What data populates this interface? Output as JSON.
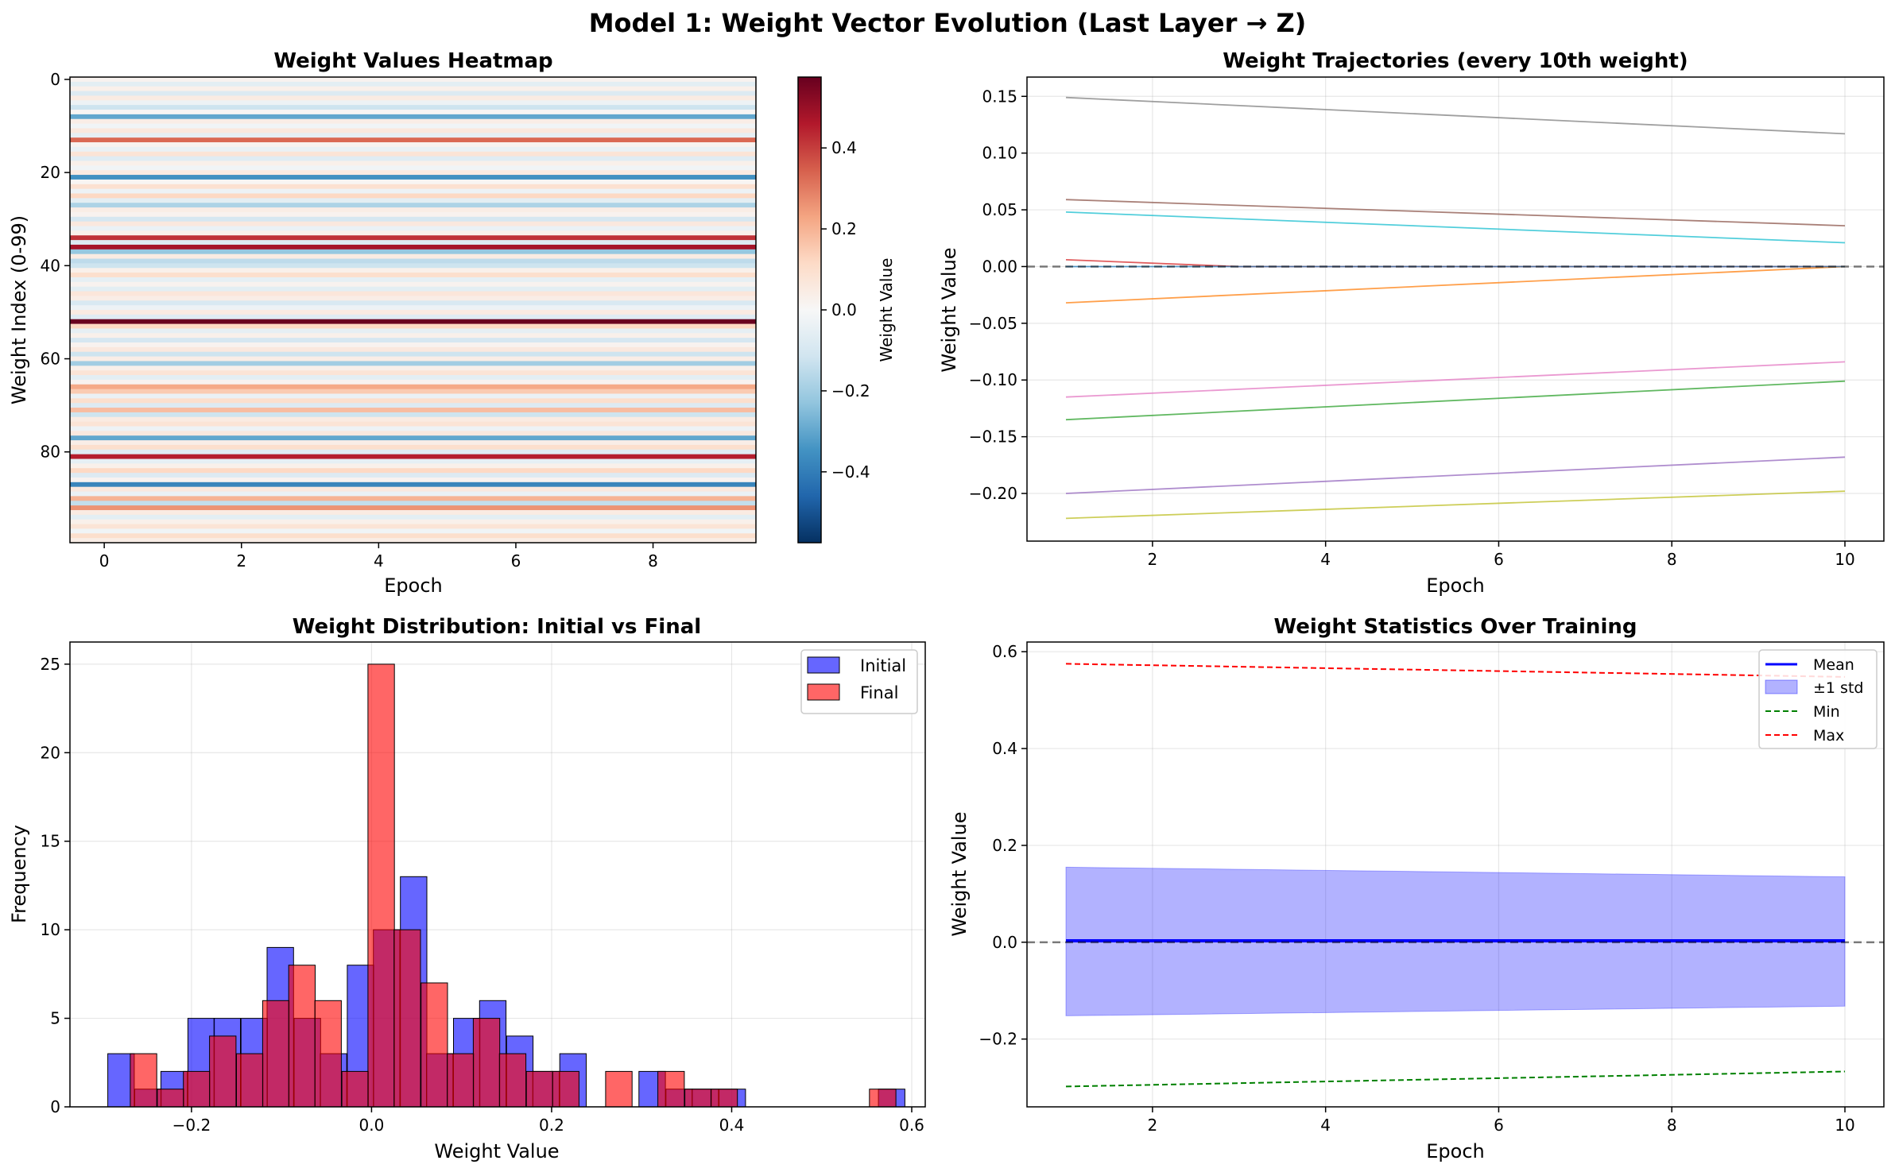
{
  "figure": {
    "suptitle": "Model 1: Weight Vector Evolution (Last Layer → Z)"
  },
  "chart_data": [
    {
      "type": "heatmap",
      "title": "Weight Values Heatmap",
      "xlabel": "Epoch",
      "ylabel": "Weight Index (0-99)",
      "colorbar_label": "Weight Value",
      "colormap": "RdBu_r",
      "vmin": -0.575,
      "vmax": 0.575,
      "xlim": [
        -0.5,
        9.5
      ],
      "ylim": [
        99.5,
        -0.5
      ],
      "xticks": [
        0,
        2,
        4,
        6,
        8
      ],
      "yticks": [
        0,
        20,
        40,
        60,
        80
      ],
      "colorbar_ticks": [
        -0.4,
        -0.2,
        0.0,
        0.2,
        0.4
      ],
      "rows": 100,
      "cols": 10,
      "row_values": [
        0.02,
        -0.06,
        0.03,
        -0.08,
        0.05,
        -0.03,
        -0.12,
        0.01,
        -0.3,
        0.04,
        -0.02,
        0.06,
        -0.05,
        0.33,
        0.02,
        -0.04,
        0.08,
        -0.07,
        0.03,
        -0.02,
        0.05,
        -0.35,
        0.01,
        0.09,
        -0.03,
        0.12,
        -0.06,
        -0.18,
        0.04,
        0.02,
        -0.1,
        0.06,
        -0.04,
        0.03,
        0.42,
        -0.08,
        0.48,
        -0.22,
        0.05,
        -0.15,
        -0.12,
        0.03,
        0.1,
        -0.05,
        0.02,
        -0.06,
        0.07,
        0.04,
        -0.09,
        -0.03,
        0.05,
        -0.07,
        0.57,
        0.12,
        -0.05,
        0.03,
        -0.1,
        0.02,
        0.06,
        -0.12,
        0.04,
        -0.2,
        0.03,
        0.08,
        -0.06,
        0.02,
        0.22,
        0.15,
        -0.04,
        0.1,
        -0.08,
        0.18,
        -0.12,
        0.05,
        0.08,
        -0.03,
        0.06,
        -0.3,
        0.04,
        0.1,
        -0.07,
        0.45,
        -0.05,
        0.03,
        0.12,
        -0.08,
        0.02,
        -0.38,
        0.06,
        -0.04,
        0.2,
        -0.14,
        0.26,
        0.05,
        -0.06,
        0.03,
        0.08,
        -0.02,
        0.1,
        0.04
      ]
    },
    {
      "type": "line",
      "title": "Weight Trajectories (every 10th weight)",
      "xlabel": "Epoch",
      "ylabel": "Weight Value",
      "xlim": [
        0.55,
        10.45
      ],
      "ylim": [
        -0.242,
        0.167
      ],
      "xticks": [
        2,
        4,
        6,
        8,
        10
      ],
      "yticks": [
        -0.2,
        -0.15,
        -0.1,
        -0.05,
        0.0,
        0.05,
        0.1,
        0.15
      ],
      "reference_line": 0.0,
      "series": [
        {
          "color": "#7f7f7f",
          "x": [
            1,
            10
          ],
          "y": [
            0.149,
            0.117
          ]
        },
        {
          "color": "#8c564b",
          "x": [
            1,
            10
          ],
          "y": [
            0.059,
            0.036
          ]
        },
        {
          "color": "#17becf",
          "x": [
            1,
            10
          ],
          "y": [
            0.048,
            0.021
          ]
        },
        {
          "color": "#d62728",
          "x": [
            1,
            3,
            10
          ],
          "y": [
            0.006,
            0.0,
            0.0
          ]
        },
        {
          "color": "#ff7f0e",
          "x": [
            1,
            10
          ],
          "y": [
            -0.032,
            0.0
          ]
        },
        {
          "color": "#e377c2",
          "x": [
            1,
            10
          ],
          "y": [
            -0.115,
            -0.084
          ]
        },
        {
          "color": "#2ca02c",
          "x": [
            1,
            10
          ],
          "y": [
            -0.135,
            -0.101
          ]
        },
        {
          "color": "#9467bd",
          "x": [
            1,
            10
          ],
          "y": [
            -0.2,
            -0.168
          ]
        },
        {
          "color": "#bcbd22",
          "x": [
            1,
            10
          ],
          "y": [
            -0.222,
            -0.198
          ]
        },
        {
          "color": "#1f77b4",
          "x": [
            1,
            10
          ],
          "y": [
            0.0,
            0.0
          ]
        }
      ]
    },
    {
      "type": "bar",
      "title": "Weight Distribution: Initial vs Final",
      "xlabel": "Weight Value",
      "ylabel": "Frequency",
      "xlim": [
        -0.335,
        0.615
      ],
      "ylim": [
        0,
        26.25
      ],
      "xticks": [
        -0.2,
        0.0,
        0.2,
        0.4,
        0.6
      ],
      "yticks": [
        0,
        5,
        10,
        15,
        20,
        25
      ],
      "legend_position": "top-right",
      "series": [
        {
          "name": "Initial",
          "color": "#0000ff",
          "bins": [
            [
              -0.293,
              3
            ],
            [
              -0.263,
              1
            ],
            [
              -0.234,
              2
            ],
            [
              -0.204,
              5
            ],
            [
              -0.175,
              5
            ],
            [
              -0.145,
              5
            ],
            [
              -0.116,
              9
            ],
            [
              -0.086,
              5
            ],
            [
              -0.057,
              3
            ],
            [
              -0.027,
              8
            ],
            [
              0.002,
              10
            ],
            [
              0.032,
              13
            ],
            [
              0.061,
              3
            ],
            [
              0.091,
              5
            ],
            [
              0.12,
              6
            ],
            [
              0.15,
              4
            ],
            [
              0.179,
              2
            ],
            [
              0.209,
              3
            ],
            [
              0.238,
              0
            ],
            [
              0.268,
              0
            ],
            [
              0.297,
              2
            ],
            [
              0.327,
              1
            ],
            [
              0.356,
              1
            ],
            [
              0.386,
              1
            ],
            [
              0.415,
              0
            ],
            [
              0.445,
              0
            ],
            [
              0.474,
              0
            ],
            [
              0.504,
              0
            ],
            [
              0.533,
              0
            ],
            [
              0.563,
              1
            ]
          ]
        },
        {
          "name": "Final",
          "color": "#ff0000",
          "bins": [
            [
              -0.268,
              3
            ],
            [
              -0.238,
              1
            ],
            [
              -0.209,
              2
            ],
            [
              -0.18,
              4
            ],
            [
              -0.15,
              3
            ],
            [
              -0.121,
              6
            ],
            [
              -0.092,
              8
            ],
            [
              -0.063,
              6
            ],
            [
              -0.033,
              2
            ],
            [
              -0.004,
              25
            ],
            [
              0.025,
              10
            ],
            [
              0.055,
              7
            ],
            [
              0.084,
              3
            ],
            [
              0.113,
              5
            ],
            [
              0.142,
              3
            ],
            [
              0.172,
              2
            ],
            [
              0.201,
              2
            ],
            [
              0.23,
              0
            ],
            [
              0.26,
              2
            ],
            [
              0.289,
              0
            ],
            [
              0.318,
              2
            ],
            [
              0.348,
              1
            ],
            [
              0.377,
              1
            ],
            [
              0.406,
              0
            ],
            [
              0.435,
              0
            ],
            [
              0.465,
              0
            ],
            [
              0.494,
              0
            ],
            [
              0.523,
              0
            ],
            [
              0.553,
              1
            ],
            [
              0.582,
              0
            ]
          ]
        }
      ],
      "bin_width": 0.0294
    },
    {
      "type": "line",
      "title": "Weight Statistics Over Training",
      "xlabel": "Epoch",
      "ylabel": "Weight Value",
      "xlim": [
        0.55,
        10.45
      ],
      "ylim": [
        -0.34,
        0.62
      ],
      "xticks": [
        2,
        4,
        6,
        8,
        10
      ],
      "yticks": [
        -0.2,
        0.0,
        0.2,
        0.4,
        0.6
      ],
      "reference_line": 0.0,
      "legend_position": "top-right",
      "series": [
        {
          "name": "Mean",
          "color": "#0000ff",
          "style": "solid",
          "x": [
            1,
            10
          ],
          "y": [
            0.003,
            0.003
          ]
        },
        {
          "name": "±1 std",
          "color": "#0000ff",
          "style": "band",
          "x": [
            1,
            10
          ],
          "upper": [
            0.155,
            0.135
          ],
          "lower": [
            -0.152,
            -0.132
          ]
        },
        {
          "name": "Min",
          "color": "#008000",
          "style": "dashed",
          "x": [
            1,
            10
          ],
          "y": [
            -0.298,
            -0.267
          ]
        },
        {
          "name": "Max",
          "color": "#ff0000",
          "style": "dashed",
          "x": [
            1,
            10
          ],
          "y": [
            0.575,
            0.548
          ]
        }
      ]
    }
  ],
  "tick_labels": {
    "hm_x": [
      "0",
      "2",
      "4",
      "6",
      "8"
    ],
    "hm_y": [
      "0",
      "20",
      "40",
      "60",
      "80"
    ],
    "cb": [
      "−0.4",
      "−0.2",
      "0.0",
      "0.2",
      "0.4"
    ],
    "tr_x": [
      "2",
      "4",
      "6",
      "8",
      "10"
    ],
    "tr_y": [
      "−0.20",
      "−0.15",
      "−0.10",
      "−0.05",
      "0.00",
      "0.05",
      "0.10",
      "0.15"
    ],
    "hist_x": [
      "−0.2",
      "0.0",
      "0.2",
      "0.4",
      "0.6"
    ],
    "hist_y": [
      "0",
      "5",
      "10",
      "15",
      "20",
      "25"
    ],
    "st_x": [
      "2",
      "4",
      "6",
      "8",
      "10"
    ],
    "st_y": [
      "−0.2",
      "0.0",
      "0.2",
      "0.4",
      "0.6"
    ]
  }
}
